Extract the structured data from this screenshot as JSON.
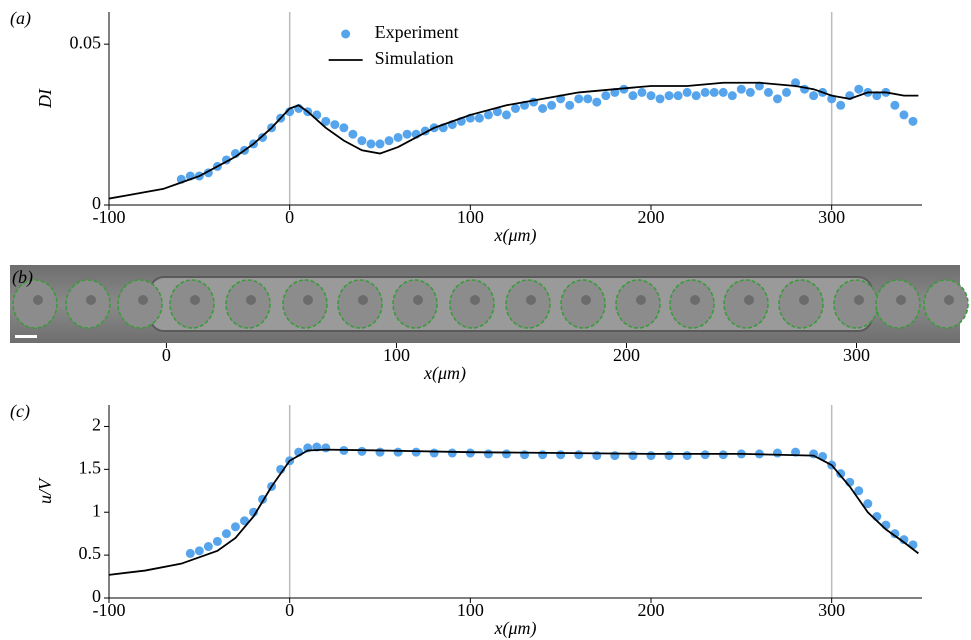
{
  "chart_data": [
    {
      "type": "scatter-line",
      "panel_label": "(a)",
      "ylabel": "DI",
      "xlabel": "x(μm)",
      "xlim": [
        -100,
        350
      ],
      "xticks": [
        -100,
        0,
        100,
        200,
        300
      ],
      "ylim": [
        0,
        0.06
      ],
      "yticks": [
        0,
        0.05
      ],
      "vlines": [
        0,
        300
      ],
      "legend": "top-center",
      "series": [
        {
          "name": "Experiment",
          "kind": "points",
          "color": "#56a5ec",
          "x": [
            -60,
            -55,
            -50,
            -45,
            -40,
            -35,
            -30,
            -25,
            -20,
            -15,
            -10,
            -5,
            0,
            5,
            10,
            15,
            20,
            25,
            30,
            35,
            40,
            45,
            50,
            55,
            60,
            65,
            70,
            75,
            80,
            85,
            90,
            95,
            100,
            105,
            110,
            115,
            120,
            125,
            130,
            135,
            140,
            145,
            150,
            155,
            160,
            165,
            170,
            175,
            180,
            185,
            190,
            195,
            200,
            205,
            210,
            215,
            220,
            225,
            230,
            235,
            240,
            245,
            250,
            255,
            260,
            265,
            270,
            275,
            280,
            285,
            290,
            295,
            300,
            305,
            310,
            315,
            320,
            325,
            330,
            335,
            340,
            345
          ],
          "values": [
            0.008,
            0.009,
            0.009,
            0.01,
            0.012,
            0.014,
            0.016,
            0.017,
            0.019,
            0.021,
            0.024,
            0.027,
            0.029,
            0.03,
            0.029,
            0.028,
            0.026,
            0.025,
            0.024,
            0.022,
            0.02,
            0.019,
            0.019,
            0.02,
            0.021,
            0.022,
            0.022,
            0.023,
            0.024,
            0.024,
            0.025,
            0.026,
            0.027,
            0.027,
            0.028,
            0.029,
            0.028,
            0.03,
            0.031,
            0.032,
            0.03,
            0.031,
            0.033,
            0.031,
            0.033,
            0.033,
            0.032,
            0.034,
            0.035,
            0.036,
            0.034,
            0.035,
            0.034,
            0.033,
            0.034,
            0.034,
            0.035,
            0.034,
            0.035,
            0.035,
            0.035,
            0.034,
            0.036,
            0.035,
            0.037,
            0.035,
            0.033,
            0.035,
            0.038,
            0.036,
            0.034,
            0.035,
            0.033,
            0.031,
            0.034,
            0.036,
            0.035,
            0.034,
            0.035,
            0.031,
            0.028,
            0.026
          ]
        },
        {
          "name": "Simulation",
          "kind": "line",
          "color": "#000000",
          "x": [
            -100,
            -90,
            -80,
            -70,
            -60,
            -50,
            -40,
            -30,
            -20,
            -10,
            0,
            5,
            10,
            20,
            30,
            40,
            50,
            60,
            70,
            80,
            90,
            100,
            120,
            140,
            160,
            180,
            200,
            220,
            240,
            260,
            280,
            290,
            300,
            310,
            320,
            330,
            340,
            348
          ],
          "values": [
            0.002,
            0.003,
            0.004,
            0.005,
            0.007,
            0.009,
            0.012,
            0.015,
            0.019,
            0.024,
            0.03,
            0.031,
            0.029,
            0.024,
            0.02,
            0.017,
            0.016,
            0.018,
            0.021,
            0.024,
            0.026,
            0.028,
            0.031,
            0.033,
            0.035,
            0.036,
            0.037,
            0.037,
            0.038,
            0.038,
            0.037,
            0.036,
            0.034,
            0.033,
            0.035,
            0.035,
            0.034,
            0.034
          ]
        }
      ]
    },
    {
      "type": "image",
      "panel_label": "(b)",
      "xlabel": "x(μm)",
      "xlim": [
        -68,
        345
      ],
      "xticks": [
        0,
        100,
        200,
        300
      ]
    },
    {
      "type": "scatter-line",
      "panel_label": "(c)",
      "ylabel": "u/V",
      "xlabel": "x(μm)",
      "xlim": [
        -100,
        350
      ],
      "xticks": [
        -100,
        0,
        100,
        200,
        300
      ],
      "ylim": [
        0,
        2.25
      ],
      "yticks": [
        0,
        0.5,
        1,
        1.5,
        2
      ],
      "vlines": [
        0,
        300
      ],
      "series": [
        {
          "kind": "points",
          "color": "#56a5ec",
          "x": [
            -55,
            -50,
            -45,
            -40,
            -35,
            -30,
            -25,
            -20,
            -15,
            -10,
            -5,
            0,
            5,
            10,
            15,
            20,
            30,
            40,
            50,
            60,
            70,
            80,
            90,
            100,
            110,
            120,
            130,
            140,
            150,
            160,
            170,
            180,
            190,
            200,
            210,
            220,
            230,
            240,
            250,
            260,
            270,
            280,
            290,
            295,
            300,
            305,
            310,
            315,
            320,
            325,
            330,
            335,
            340,
            345
          ],
          "values": [
            0.52,
            0.55,
            0.6,
            0.66,
            0.75,
            0.83,
            0.9,
            1.0,
            1.15,
            1.3,
            1.5,
            1.6,
            1.7,
            1.75,
            1.76,
            1.75,
            1.72,
            1.71,
            1.7,
            1.7,
            1.7,
            1.69,
            1.69,
            1.69,
            1.68,
            1.68,
            1.67,
            1.67,
            1.67,
            1.67,
            1.66,
            1.66,
            1.66,
            1.66,
            1.66,
            1.66,
            1.67,
            1.67,
            1.68,
            1.68,
            1.69,
            1.7,
            1.68,
            1.65,
            1.55,
            1.45,
            1.35,
            1.25,
            1.1,
            0.95,
            0.85,
            0.75,
            0.68,
            0.62
          ]
        },
        {
          "kind": "line",
          "color": "#000000",
          "x": [
            -100,
            -80,
            -60,
            -40,
            -30,
            -20,
            -10,
            0,
            10,
            20,
            50,
            100,
            150,
            200,
            250,
            290,
            300,
            310,
            320,
            330,
            340,
            348
          ],
          "values": [
            0.27,
            0.32,
            0.4,
            0.55,
            0.7,
            0.95,
            1.3,
            1.6,
            1.72,
            1.73,
            1.72,
            1.7,
            1.69,
            1.68,
            1.68,
            1.66,
            1.55,
            1.3,
            1.0,
            0.8,
            0.65,
            0.52
          ]
        }
      ]
    }
  ]
}
